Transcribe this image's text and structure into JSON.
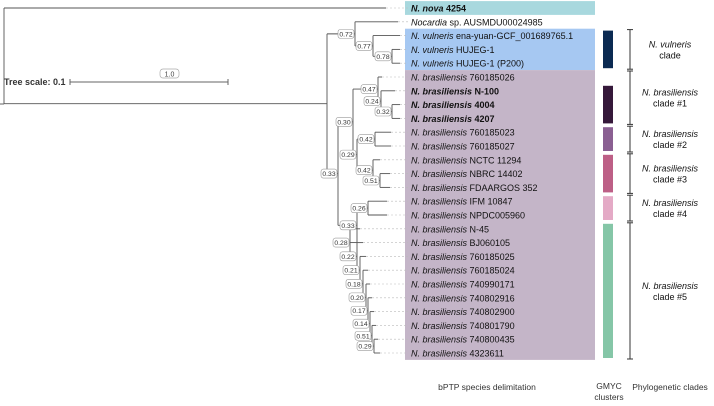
{
  "tree_scale": {
    "label": "Tree scale: 0.1",
    "root_support": "1.0"
  },
  "taxa": [
    {
      "genus": "N.",
      "epithet": "nova",
      "strain": "4254",
      "bold": true,
      "bptp": "nova"
    },
    {
      "genus": "Nocardia",
      "epithet": "sp.",
      "strain": "AUSMDU00024985",
      "bold": false,
      "bptp": "none",
      "genus_italic_only": true
    },
    {
      "genus": "N.",
      "epithet": "vulneris",
      "strain": "ena-yuan-GCF_001689765.1",
      "bold": false,
      "bptp": "vulneris"
    },
    {
      "genus": "N.",
      "epithet": "vulneris",
      "strain": "HUJEG-1",
      "bold": false,
      "bptp": "vulneris"
    },
    {
      "genus": "N.",
      "epithet": "vulneris",
      "strain": "HUJEG-1 (P200)",
      "bold": false,
      "bptp": "vulneris"
    },
    {
      "genus": "N.",
      "epithet": "brasiliensis",
      "strain": "760185026",
      "bold": false,
      "bptp": "brasiliensis"
    },
    {
      "genus": "N.",
      "epithet": "brasiliensis",
      "strain": "N-100",
      "bold": true,
      "bptp": "brasiliensis"
    },
    {
      "genus": "N.",
      "epithet": "brasiliensis",
      "strain": "4004",
      "bold": true,
      "bptp": "brasiliensis"
    },
    {
      "genus": "N.",
      "epithet": "brasiliensis",
      "strain": "4207",
      "bold": true,
      "bptp": "brasiliensis"
    },
    {
      "genus": "N.",
      "epithet": "brasiliensis",
      "strain": "760185023",
      "bold": false,
      "bptp": "brasiliensis"
    },
    {
      "genus": "N.",
      "epithet": "brasiliensis",
      "strain": "760185027",
      "bold": false,
      "bptp": "brasiliensis"
    },
    {
      "genus": "N.",
      "epithet": "brasiliensis",
      "strain": "NCTC 11294",
      "bold": false,
      "bptp": "brasiliensis"
    },
    {
      "genus": "N.",
      "epithet": "brasiliensis",
      "strain": "NBRC 14402",
      "bold": false,
      "bptp": "brasiliensis"
    },
    {
      "genus": "N.",
      "epithet": "brasiliensis",
      "strain": "FDAARGOS 352",
      "bold": false,
      "bptp": "brasiliensis"
    },
    {
      "genus": "N.",
      "epithet": "brasiliensis",
      "strain": "IFM 10847",
      "bold": false,
      "bptp": "brasiliensis"
    },
    {
      "genus": "N.",
      "epithet": "brasiliensis",
      "strain": "NPDC005960",
      "bold": false,
      "bptp": "brasiliensis"
    },
    {
      "genus": "N.",
      "epithet": "brasiliensis",
      "strain": "N-45",
      "bold": false,
      "bptp": "brasiliensis"
    },
    {
      "genus": "N.",
      "epithet": "brasiliensis",
      "strain": "BJ060105",
      "bold": false,
      "bptp": "brasiliensis"
    },
    {
      "genus": "N.",
      "epithet": "brasiliensis",
      "strain": "760185025",
      "bold": false,
      "bptp": "brasiliensis"
    },
    {
      "genus": "N.",
      "epithet": "brasiliensis",
      "strain": "760185024",
      "bold": false,
      "bptp": "brasiliensis"
    },
    {
      "genus": "N.",
      "epithet": "brasiliensis",
      "strain": "740990171",
      "bold": false,
      "bptp": "brasiliensis"
    },
    {
      "genus": "N.",
      "epithet": "brasiliensis",
      "strain": "740802916",
      "bold": false,
      "bptp": "brasiliensis"
    },
    {
      "genus": "N.",
      "epithet": "brasiliensis",
      "strain": "740802900",
      "bold": false,
      "bptp": "brasiliensis"
    },
    {
      "genus": "N.",
      "epithet": "brasiliensis",
      "strain": "740801790",
      "bold": false,
      "bptp": "brasiliensis"
    },
    {
      "genus": "N.",
      "epithet": "brasiliensis",
      "strain": "740800435",
      "bold": false,
      "bptp": "brasiliensis"
    },
    {
      "genus": "N.",
      "epithet": "brasiliensis",
      "strain": "4323611",
      "bold": false,
      "bptp": "brasiliensis"
    }
  ],
  "bptp_colors": {
    "nova": "#a8d8de",
    "vulneris": "#a6c8f2",
    "brasiliensis": "#c4b5c8"
  },
  "support_values": [
    "0.78",
    "0.77",
    "0.72",
    "0.32",
    "0.24",
    "0.47",
    "0.42",
    "0.51",
    "0.42",
    "0.29",
    "0.30",
    "0.26",
    "0.29",
    "0.51",
    "0.14",
    "0.17",
    "0.20",
    "0.18",
    "0.21",
    "0.22",
    "0.28",
    "0.33",
    "0.33"
  ],
  "gmyc_clusters": [
    {
      "taxa": [
        2,
        4
      ],
      "color": "#0b2a52"
    },
    {
      "taxa": [
        6,
        8
      ],
      "color": "#35183a"
    },
    {
      "taxa": [
        9,
        10
      ],
      "color": "#8a5f92"
    },
    {
      "taxa": [
        11,
        13
      ],
      "color": "#bd5f86"
    },
    {
      "taxa": [
        14,
        15
      ],
      "color": "#e4aac6"
    },
    {
      "taxa": [
        16,
        25
      ],
      "color": "#85c6a7"
    }
  ],
  "clades": [
    {
      "name_italic": "N. vulneris",
      "name_rest": "clade",
      "taxa": [
        2,
        4
      ]
    },
    {
      "name_italic": "N. brasiliensis",
      "name_rest": "clade #1",
      "taxa": [
        5,
        8
      ]
    },
    {
      "name_italic": "N. brasiliensis",
      "name_rest": "clade #2",
      "taxa": [
        9,
        10
      ]
    },
    {
      "name_italic": "N. brasiliensis",
      "name_rest": "clade #3",
      "taxa": [
        11,
        13
      ]
    },
    {
      "name_italic": "N. brasiliensis",
      "name_rest": "clade #4",
      "taxa": [
        14,
        15
      ]
    },
    {
      "name_italic": "N. brasiliensis",
      "name_rest": "clade #5",
      "taxa": [
        16,
        25
      ]
    }
  ],
  "footer": {
    "bptp_label": "bPTP species delimitation",
    "gmyc_label_1": "GMYC",
    "gmyc_label_2": "clusters",
    "clades_label": "Phylogenetic clades"
  }
}
